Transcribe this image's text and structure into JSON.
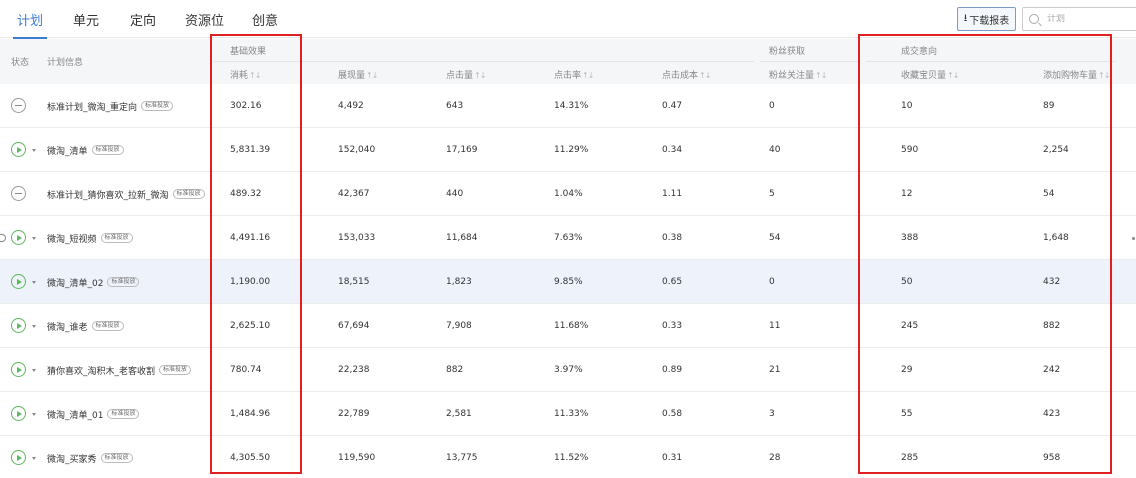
{
  "tabs": [
    {
      "label": "计划",
      "active": true
    },
    {
      "label": "单元",
      "active": false
    },
    {
      "label": "定向",
      "active": false
    },
    {
      "label": "资源位",
      "active": false
    },
    {
      "label": "创意",
      "active": false
    }
  ],
  "toolbar": {
    "download_label": "下载报表",
    "download_icon": "download-icon",
    "search_placeholder": "计划",
    "search_icon": "search-icon"
  },
  "header": {
    "status": "状态",
    "plan_info": "计划信息",
    "group_basic": "基础效果",
    "group_fans": "粉丝获取",
    "group_deal": "成交意向",
    "sort_icon": "↑↓",
    "columns": [
      "消耗",
      "展现量",
      "点击量",
      "点击率",
      "点击成本",
      "粉丝关注量",
      "收藏宝贝量",
      "添加购物车量"
    ]
  },
  "colors": {
    "accent": "#3a7bd5",
    "active_status": "#5cb85c",
    "paused_status": "#999999",
    "highlight_row": "#eef3fb",
    "annotation_red": "#e02020"
  },
  "rows": [
    {
      "status": "paused",
      "caret": false,
      "name": "标准计划_微淘_重定向",
      "badge": "标准投放",
      "spend": "302.16",
      "impressions": "4,492",
      "clicks": "643",
      "ctr": "14.31%",
      "cpc": "0.47",
      "fans": "0",
      "favorites": "10",
      "cart": "89"
    },
    {
      "status": "active",
      "caret": true,
      "name": "微淘_清单",
      "badge": "标准投放",
      "spend": "5,831.39",
      "impressions": "152,040",
      "clicks": "17,169",
      "ctr": "11.29%",
      "cpc": "0.34",
      "fans": "40",
      "favorites": "590",
      "cart": "2,254"
    },
    {
      "status": "paused",
      "caret": false,
      "name": "标准计划_猜你喜欢_拉新_微淘",
      "badge": "标准投放",
      "spend": "489.32",
      "impressions": "42,367",
      "clicks": "440",
      "ctr": "1.04%",
      "cpc": "1.11",
      "fans": "5",
      "favorites": "12",
      "cart": "54"
    },
    {
      "status": "active",
      "caret": true,
      "name": "微淘_短视频",
      "badge": "标准投放",
      "spend": "4,491.16",
      "impressions": "153,033",
      "clicks": "11,684",
      "ctr": "7.63%",
      "cpc": "0.38",
      "fans": "54",
      "favorites": "388",
      "cart": "1,648"
    },
    {
      "status": "active",
      "caret": true,
      "name": "微淘_清单_02",
      "badge": "标准投放",
      "spend": "1,190.00",
      "impressions": "18,515",
      "clicks": "1,823",
      "ctr": "9.85%",
      "cpc": "0.65",
      "fans": "0",
      "favorites": "50",
      "cart": "432"
    },
    {
      "status": "active",
      "caret": true,
      "name": "微淘_谁老",
      "badge": "标准投放",
      "spend": "2,625.10",
      "impressions": "67,694",
      "clicks": "7,908",
      "ctr": "11.68%",
      "cpc": "0.33",
      "fans": "11",
      "favorites": "245",
      "cart": "882"
    },
    {
      "status": "active",
      "caret": true,
      "name": "猜你喜欢_淘积木_老客收割",
      "badge": "标准投放",
      "spend": "780.74",
      "impressions": "22,238",
      "clicks": "882",
      "ctr": "3.97%",
      "cpc": "0.89",
      "fans": "21",
      "favorites": "29",
      "cart": "242"
    },
    {
      "status": "active",
      "caret": true,
      "name": "微淘_清单_01",
      "badge": "标准投放",
      "spend": "1,484.96",
      "impressions": "22,789",
      "clicks": "2,581",
      "ctr": "11.33%",
      "cpc": "0.58",
      "fans": "3",
      "favorites": "55",
      "cart": "423"
    },
    {
      "status": "active",
      "caret": true,
      "name": "微淘_买家秀",
      "badge": "标准投放",
      "spend": "4,305.50",
      "impressions": "119,590",
      "clicks": "13,775",
      "ctr": "11.52%",
      "cpc": "0.31",
      "fans": "28",
      "favorites": "285",
      "cart": "958"
    }
  ]
}
